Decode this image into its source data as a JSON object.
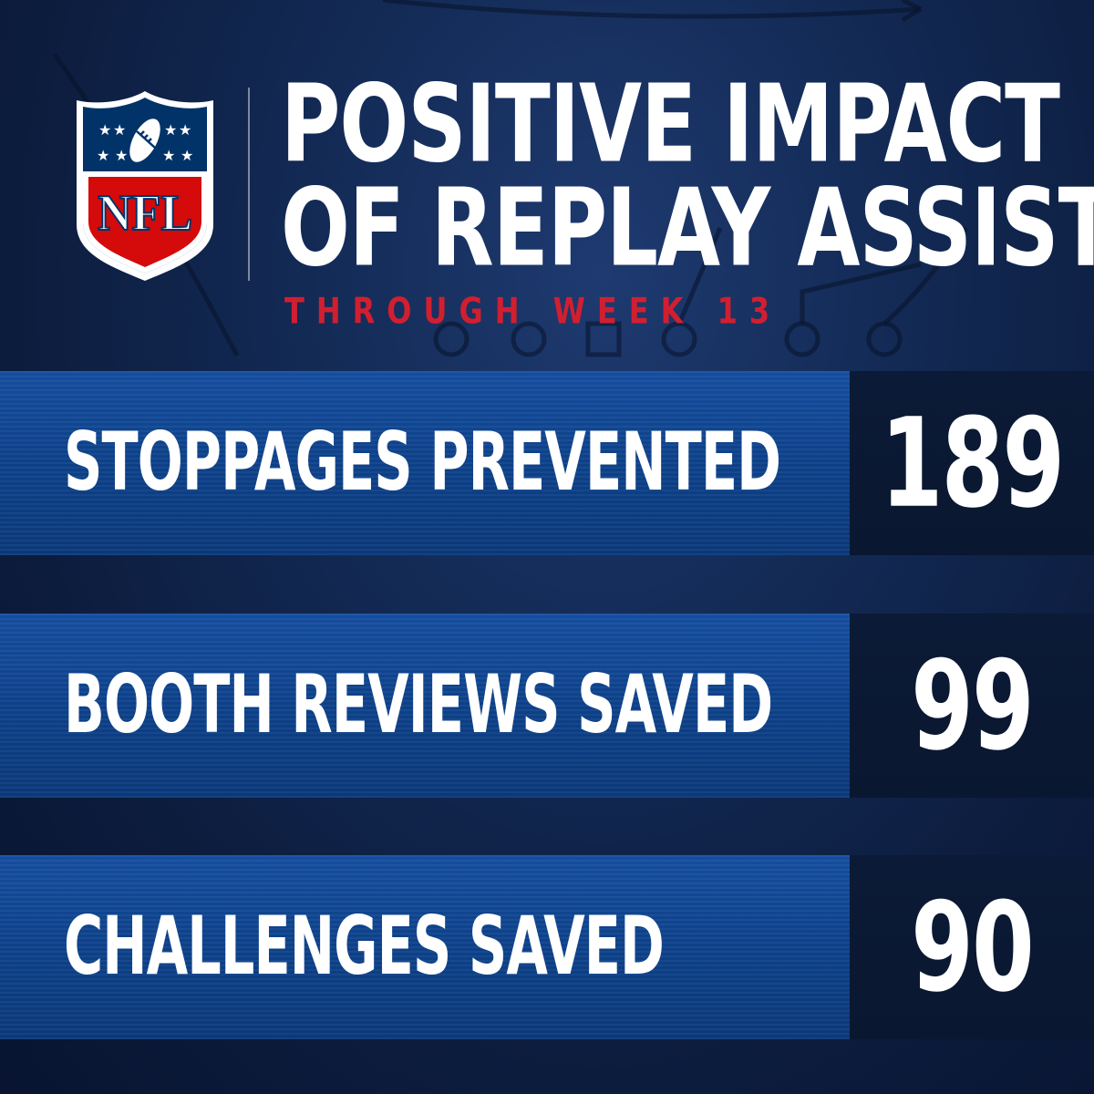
{
  "logo": {
    "name": "nfl-shield-logo",
    "text": "NFL",
    "colors": {
      "blue": "#013369",
      "red": "#d50a0a",
      "white": "#ffffff"
    }
  },
  "header": {
    "title_line_1": "POSITIVE IMPACT",
    "title_line_2": "OF REPLAY ASSIST",
    "subtitle": "THROUGH WEEK 13"
  },
  "stats": [
    {
      "label": "STOPPAGES PREVENTED",
      "value": "189"
    },
    {
      "label": "BOOTH REVIEWS SAVED",
      "value": "99"
    },
    {
      "label": "CHALLENGES SAVED",
      "value": "90"
    }
  ],
  "colors": {
    "background": "#0c1c3d",
    "bar_blue": "#0f448e",
    "value_box": "#0a1730",
    "accent_red": "#d11f30",
    "text": "#ffffff"
  }
}
